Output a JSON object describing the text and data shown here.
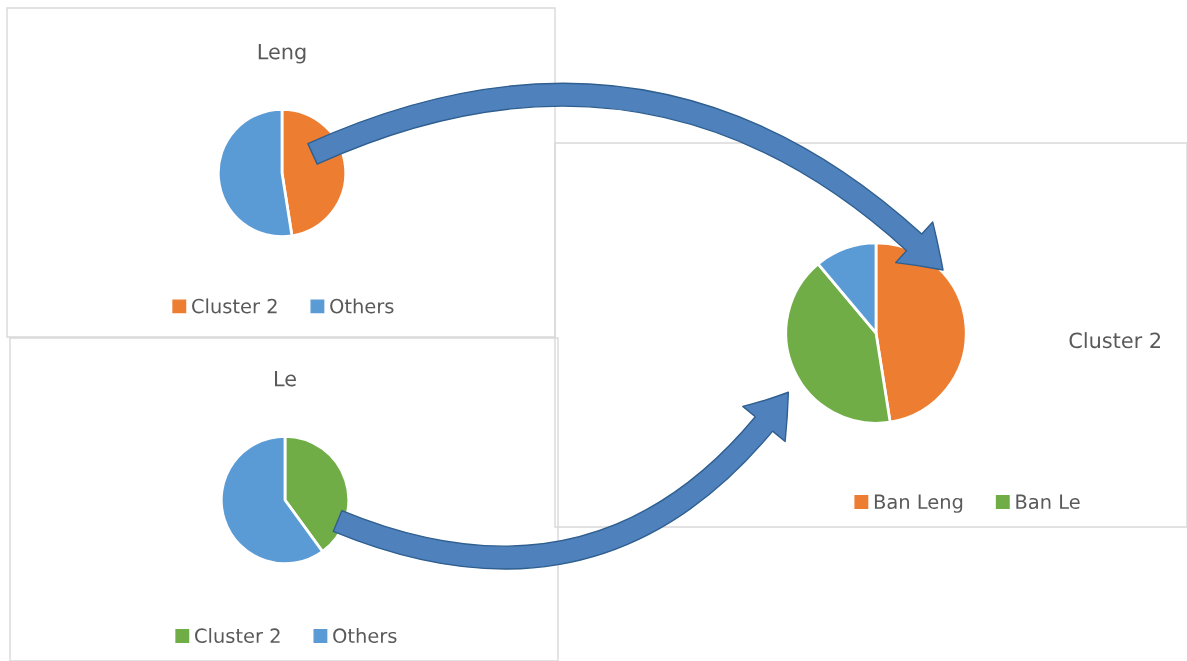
{
  "chart_data": [
    {
      "type": "pie",
      "title": "Leng",
      "categories": [
        "Cluster 2",
        "Others"
      ],
      "values": [
        47.5,
        52.5
      ],
      "colors": [
        "#ed7d31",
        "#5b9bd5"
      ],
      "legend": "bottom"
    },
    {
      "type": "pie",
      "title": "Le",
      "categories": [
        "Cluster 2",
        "Others"
      ],
      "values": [
        40,
        60
      ],
      "colors": [
        "#70ad47",
        "#5b9bd5"
      ],
      "legend": "bottom"
    },
    {
      "type": "pie",
      "title": "Cluster 2",
      "categories": [
        "Ban Leng",
        "Ban Le",
        null
      ],
      "values": [
        47.5,
        41.4,
        11.1
      ],
      "colors": [
        "#ed7d31",
        "#70ad47",
        "#5b9bd5"
      ],
      "legend": "bottom"
    }
  ]
}
